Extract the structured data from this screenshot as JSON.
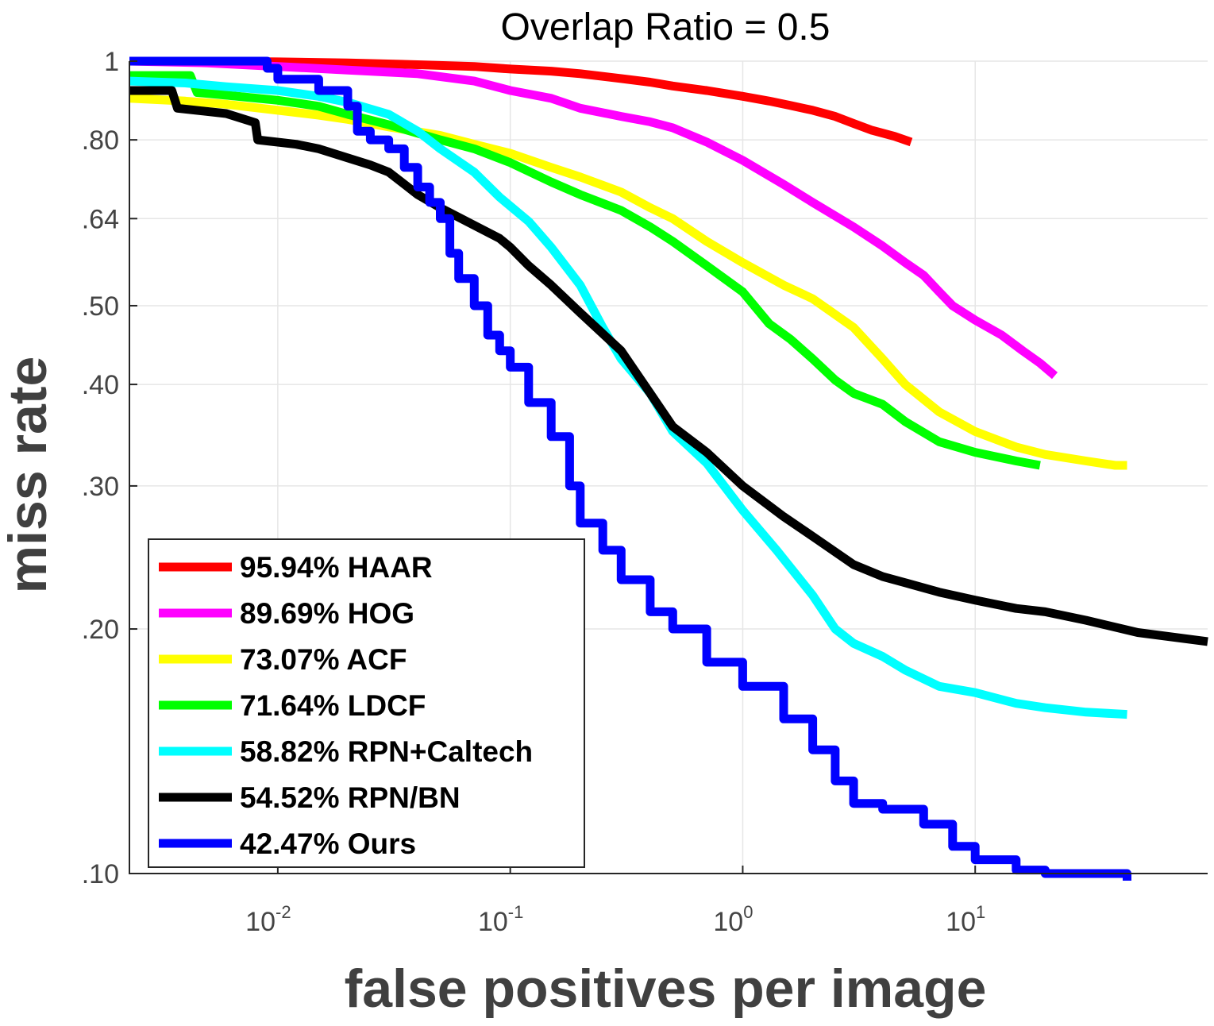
{
  "chart_data": {
    "type": "line",
    "title": "Overlap Ratio = 0.5",
    "xlabel": "false positives per image",
    "ylabel": "miss rate",
    "x_scale": "log",
    "y_scale": "log",
    "xlim": [
      0.0023,
      100
    ],
    "ylim": [
      0.1,
      1
    ],
    "x_ticks": [
      {
        "value": 0.01,
        "base": "10",
        "exp": "-2"
      },
      {
        "value": 0.1,
        "base": "10",
        "exp": "-1"
      },
      {
        "value": 1,
        "base": "10",
        "exp": "0"
      },
      {
        "value": 10,
        "base": "10",
        "exp": "1"
      }
    ],
    "y_ticks": [
      {
        "value": 0.1,
        "label": ".10"
      },
      {
        "value": 0.2,
        "label": ".20"
      },
      {
        "value": 0.3,
        "label": ".30"
      },
      {
        "value": 0.4,
        "label": ".40"
      },
      {
        "value": 0.5,
        "label": ".50"
      },
      {
        "value": 0.64,
        "label": ".64"
      },
      {
        "value": 0.8,
        "label": ".80"
      },
      {
        "value": 1,
        "label": "1"
      }
    ],
    "grid": true,
    "legend_position": "bottom-left",
    "series": [
      {
        "name": "95.94% HAAR",
        "color": "#ff0000",
        "step": false,
        "x": [
          0.0023,
          0.005,
          0.01,
          0.02,
          0.04,
          0.07,
          0.1,
          0.15,
          0.2,
          0.3,
          0.4,
          0.5,
          0.7,
          1.0,
          1.3,
          1.6,
          2.0,
          2.5,
          3.0,
          3.6,
          4.5,
          5.3
        ],
        "y": [
          1.0,
          1.0,
          0.998,
          0.995,
          0.99,
          0.985,
          0.978,
          0.972,
          0.965,
          0.952,
          0.942,
          0.932,
          0.92,
          0.905,
          0.893,
          0.882,
          0.87,
          0.855,
          0.838,
          0.822,
          0.808,
          0.795
        ]
      },
      {
        "name": "89.69% HOG",
        "color": "#ff00ff",
        "step": false,
        "x": [
          0.0023,
          0.005,
          0.01,
          0.02,
          0.04,
          0.07,
          0.1,
          0.15,
          0.2,
          0.3,
          0.4,
          0.5,
          0.7,
          1.0,
          1.5,
          2.0,
          3.0,
          4.0,
          5.0,
          6.0,
          7.0,
          8.0,
          10.0,
          13.0,
          16.0,
          19.0,
          22.0
        ],
        "y": [
          1.0,
          0.995,
          0.985,
          0.975,
          0.965,
          0.945,
          0.92,
          0.9,
          0.875,
          0.855,
          0.842,
          0.828,
          0.795,
          0.755,
          0.705,
          0.67,
          0.625,
          0.592,
          0.565,
          0.545,
          0.52,
          0.5,
          0.48,
          0.46,
          0.44,
          0.425,
          0.41
        ]
      },
      {
        "name": "73.07% ACF",
        "color": "#ffff00",
        "step": false,
        "x": [
          0.0023,
          0.004,
          0.006,
          0.01,
          0.015,
          0.02,
          0.03,
          0.05,
          0.07,
          0.1,
          0.15,
          0.2,
          0.3,
          0.4,
          0.5,
          0.7,
          1.0,
          1.5,
          2.0,
          3.0,
          4.0,
          5.0,
          7.0,
          10.0,
          15.0,
          20.0,
          30.0,
          40.0,
          45.0
        ],
        "y": [
          0.9,
          0.893,
          0.885,
          0.87,
          0.858,
          0.848,
          0.83,
          0.81,
          0.79,
          0.77,
          0.74,
          0.72,
          0.69,
          0.66,
          0.64,
          0.6,
          0.565,
          0.53,
          0.51,
          0.47,
          0.43,
          0.4,
          0.37,
          0.35,
          0.335,
          0.328,
          0.322,
          0.318,
          0.318
        ]
      },
      {
        "name": "71.64% LDCF",
        "color": "#00ff00",
        "step": false,
        "x": [
          0.0023,
          0.0042,
          0.0045,
          0.006,
          0.01,
          0.015,
          0.02,
          0.03,
          0.05,
          0.07,
          0.1,
          0.15,
          0.2,
          0.3,
          0.4,
          0.5,
          0.7,
          1.0,
          1.3,
          1.6,
          2.0,
          2.5,
          3.0,
          4.0,
          5.0,
          7.0,
          10.0,
          15.0,
          19.0
        ],
        "y": [
          0.96,
          0.96,
          0.915,
          0.908,
          0.895,
          0.88,
          0.86,
          0.835,
          0.8,
          0.78,
          0.75,
          0.71,
          0.685,
          0.655,
          0.625,
          0.6,
          0.56,
          0.52,
          0.475,
          0.455,
          0.43,
          0.405,
          0.39,
          0.378,
          0.36,
          0.34,
          0.33,
          0.322,
          0.318
        ]
      },
      {
        "name": "58.82% RPN+Caltech",
        "color": "#00ffff",
        "step": false,
        "x": [
          0.0023,
          0.004,
          0.006,
          0.01,
          0.015,
          0.02,
          0.03,
          0.04,
          0.05,
          0.07,
          0.09,
          0.12,
          0.15,
          0.2,
          0.25,
          0.3,
          0.4,
          0.5,
          0.7,
          1.0,
          1.4,
          2.0,
          2.5,
          3.0,
          4.0,
          5.0,
          7.0,
          10.0,
          15.0,
          20.0,
          30.0,
          45.0
        ],
        "y": [
          0.945,
          0.94,
          0.93,
          0.92,
          0.905,
          0.89,
          0.86,
          0.82,
          0.78,
          0.73,
          0.68,
          0.635,
          0.59,
          0.53,
          0.47,
          0.43,
          0.39,
          0.35,
          0.32,
          0.28,
          0.25,
          0.22,
          0.2,
          0.192,
          0.185,
          0.178,
          0.17,
          0.167,
          0.162,
          0.16,
          0.158,
          0.157
        ]
      },
      {
        "name": "54.52% RPN/BN",
        "color": "#000000",
        "step": false,
        "x": [
          0.0023,
          0.0035,
          0.0037,
          0.006,
          0.008,
          0.0082,
          0.012,
          0.015,
          0.02,
          0.025,
          0.03,
          0.04,
          0.05,
          0.07,
          0.09,
          0.1,
          0.12,
          0.15,
          0.2,
          0.3,
          0.4,
          0.5,
          0.7,
          1.0,
          1.5,
          2.0,
          3.0,
          4.0,
          5.0,
          7.0,
          10.0,
          15.0,
          20.0,
          30.0,
          50.0,
          100.0
        ],
        "y": [
          0.92,
          0.92,
          0.875,
          0.862,
          0.84,
          0.8,
          0.79,
          0.78,
          0.76,
          0.745,
          0.73,
          0.685,
          0.66,
          0.628,
          0.605,
          0.59,
          0.56,
          0.53,
          0.49,
          0.44,
          0.39,
          0.355,
          0.33,
          0.3,
          0.275,
          0.26,
          0.24,
          0.232,
          0.228,
          0.222,
          0.217,
          0.212,
          0.21,
          0.205,
          0.198,
          0.193
        ]
      },
      {
        "name": "42.47% Ours",
        "color": "#0000ff",
        "step": true,
        "x": [
          0.0023,
          0.008,
          0.009,
          0.01,
          0.015,
          0.02,
          0.022,
          0.025,
          0.03,
          0.035,
          0.04,
          0.045,
          0.05,
          0.055,
          0.06,
          0.07,
          0.08,
          0.09,
          0.1,
          0.12,
          0.15,
          0.18,
          0.2,
          0.25,
          0.3,
          0.4,
          0.5,
          0.7,
          1.0,
          1.5,
          2.0,
          2.5,
          3.0,
          4.0,
          6.0,
          8.0,
          10.0,
          15.0,
          20.0,
          30.0,
          45.0
        ],
        "y": [
          1.0,
          1.0,
          0.98,
          0.95,
          0.92,
          0.88,
          0.82,
          0.8,
          0.78,
          0.74,
          0.7,
          0.67,
          0.64,
          0.58,
          0.54,
          0.5,
          0.46,
          0.44,
          0.42,
          0.38,
          0.345,
          0.3,
          0.27,
          0.25,
          0.23,
          0.21,
          0.2,
          0.182,
          0.17,
          0.155,
          0.142,
          0.13,
          0.122,
          0.12,
          0.115,
          0.108,
          0.104,
          0.101,
          0.1,
          0.1,
          0.098
        ]
      }
    ]
  }
}
